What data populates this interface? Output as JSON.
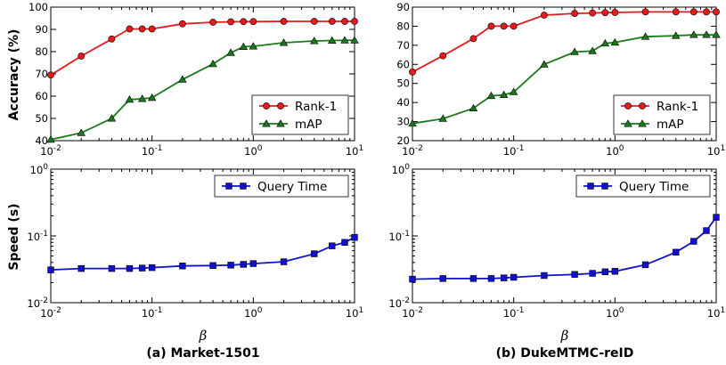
{
  "figure": {
    "panels": [
      {
        "caption": "(a) Market-1501",
        "xlabel": "β"
      },
      {
        "caption": "(b) DukeMTMC-reID",
        "xlabel": "β"
      }
    ],
    "ylabels": {
      "accuracy": "Accuracy (%)",
      "speed": "Speed (s)"
    }
  },
  "chart_data": [
    {
      "type": "line",
      "panel": "(a) Market-1501 — accuracy",
      "x_scale": "log",
      "xlim": [
        0.01,
        10
      ],
      "x_ticks": [
        "10^-2",
        "10^-1",
        "10^0",
        "10^1"
      ],
      "ylabel": "Accuracy (%)",
      "ylim": [
        40,
        100
      ],
      "y_ticks": [
        40,
        50,
        60,
        70,
        80,
        90,
        100
      ],
      "legend": "lower-right",
      "x": [
        0.01,
        0.02,
        0.04,
        0.06,
        0.08,
        0.1,
        0.2,
        0.4,
        0.6,
        0.8,
        1,
        2,
        4,
        6,
        8,
        10
      ],
      "series": [
        {
          "name": "Rank-1",
          "color": "#e41a1c",
          "marker": "circle",
          "values": [
            69.5,
            78.0,
            85.7,
            90.2,
            90.2,
            90.2,
            92.5,
            93.2,
            93.4,
            93.5,
            93.5,
            93.6,
            93.6,
            93.6,
            93.6,
            93.6
          ]
        },
        {
          "name": "mAP",
          "color": "#1a7a1a",
          "marker": "triangle",
          "values": [
            40.5,
            43.5,
            50.0,
            58.5,
            58.8,
            59.3,
            67.5,
            74.5,
            79.5,
            82.2,
            82.4,
            84.0,
            84.8,
            85.0,
            85.1,
            85.1
          ]
        }
      ]
    },
    {
      "type": "line",
      "panel": "(b) DukeMTMC-reID — accuracy",
      "x_scale": "log",
      "xlim": [
        0.01,
        10
      ],
      "x_ticks": [
        "10^-2",
        "10^-1",
        "10^0",
        "10^1"
      ],
      "ylabel": "",
      "ylim": [
        20,
        90
      ],
      "y_ticks": [
        20,
        30,
        40,
        50,
        60,
        70,
        80,
        90
      ],
      "legend": "lower-right",
      "x": [
        0.01,
        0.02,
        0.04,
        0.06,
        0.08,
        0.1,
        0.2,
        0.4,
        0.6,
        0.8,
        1,
        2,
        4,
        6,
        8,
        10
      ],
      "series": [
        {
          "name": "Rank-1",
          "color": "#e41a1c",
          "marker": "circle",
          "values": [
            56.0,
            64.5,
            73.5,
            80.0,
            80.0,
            80.0,
            85.8,
            86.7,
            86.9,
            87.1,
            87.2,
            87.5,
            87.5,
            87.5,
            87.5,
            87.5
          ]
        },
        {
          "name": "mAP",
          "color": "#1a7a1a",
          "marker": "triangle",
          "values": [
            29.0,
            31.5,
            37.0,
            43.5,
            44.0,
            45.5,
            60.0,
            66.5,
            67.0,
            71.0,
            71.5,
            74.5,
            75.0,
            75.5,
            75.5,
            75.5
          ]
        }
      ]
    },
    {
      "type": "line",
      "panel": "(a) Market-1501 — speed",
      "x_scale": "log",
      "xlim": [
        0.01,
        10
      ],
      "x_ticks": [
        "10^-2",
        "10^-1",
        "10^0",
        "10^1"
      ],
      "xlabel": "β",
      "ylabel": "Speed (s)",
      "y_scale": "log",
      "ylim": [
        0.01,
        1
      ],
      "y_ticks": [
        "10^-2",
        "10^-1",
        "10^0"
      ],
      "legend": "top-right",
      "x": [
        0.01,
        0.02,
        0.04,
        0.06,
        0.08,
        0.1,
        0.2,
        0.4,
        0.6,
        0.8,
        1,
        2,
        4,
        6,
        8,
        10
      ],
      "series": [
        {
          "name": "Query Time",
          "color": "#1010d0",
          "marker": "square",
          "values": [
            0.031,
            0.0325,
            0.0325,
            0.0325,
            0.033,
            0.0335,
            0.0355,
            0.036,
            0.0365,
            0.0375,
            0.0385,
            0.041,
            0.054,
            0.071,
            0.08,
            0.095
          ]
        }
      ]
    },
    {
      "type": "line",
      "panel": "(b) DukeMTMC-reID — speed",
      "x_scale": "log",
      "xlim": [
        0.01,
        10
      ],
      "x_ticks": [
        "10^-2",
        "10^-1",
        "10^0",
        "10^1"
      ],
      "xlabel": "β",
      "ylabel": "",
      "y_scale": "log",
      "ylim": [
        0.01,
        1
      ],
      "y_ticks": [
        "10^-2",
        "10^-1",
        "10^0"
      ],
      "legend": "top-right",
      "x": [
        0.01,
        0.02,
        0.04,
        0.06,
        0.08,
        0.1,
        0.2,
        0.4,
        0.6,
        0.8,
        1,
        2,
        4,
        6,
        8,
        10
      ],
      "series": [
        {
          "name": "Query Time",
          "color": "#1010d0",
          "marker": "square",
          "values": [
            0.0225,
            0.023,
            0.023,
            0.023,
            0.0235,
            0.024,
            0.0255,
            0.0265,
            0.0275,
            0.029,
            0.0295,
            0.037,
            0.057,
            0.083,
            0.12,
            0.19
          ]
        }
      ]
    }
  ]
}
